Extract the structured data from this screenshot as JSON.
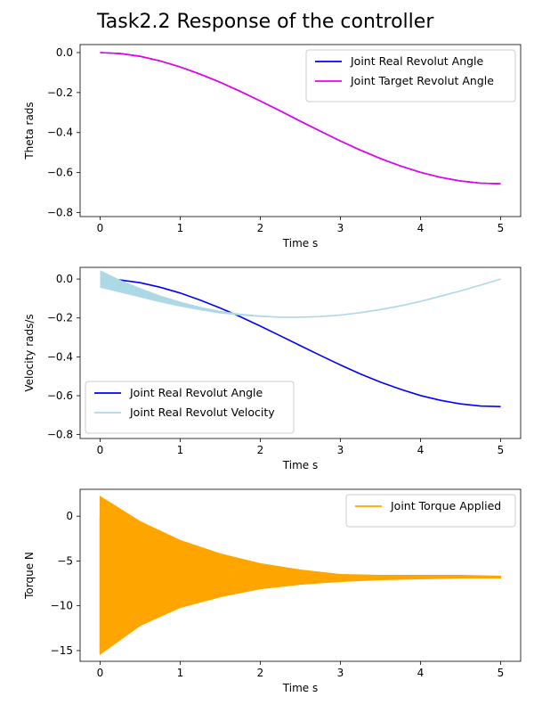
{
  "title": "Task2.2 Response of the controller",
  "chart_data": [
    {
      "type": "line",
      "xlabel": "Time s",
      "ylabel": "Theta rads",
      "xlim": [
        -0.25,
        5.25
      ],
      "ylim": [
        -0.82,
        0.04
      ],
      "xticks": [
        0,
        1,
        2,
        3,
        4,
        5
      ],
      "yticks": [
        0.0,
        -0.2,
        -0.4,
        -0.6,
        -0.8
      ],
      "legend_position": "upper right",
      "series": [
        {
          "name": "Joint Real Revolut Angle",
          "color": "#0000ff",
          "x": [
            0,
            0.25,
            0.5,
            0.75,
            1,
            1.25,
            1.5,
            1.75,
            2,
            2.25,
            2.5,
            2.75,
            3,
            3.25,
            3.5,
            3.75,
            4,
            4.25,
            4.5,
            4.75,
            5
          ],
          "values": [
            0,
            -0.005,
            -0.019,
            -0.042,
            -0.072,
            -0.108,
            -0.149,
            -0.194,
            -0.242,
            -0.292,
            -0.343,
            -0.393,
            -0.442,
            -0.488,
            -0.53,
            -0.567,
            -0.599,
            -0.624,
            -0.642,
            -0.653,
            -0.656
          ]
        },
        {
          "name": "Joint Target Revolut Angle",
          "color": "#ee00ee",
          "x": [
            0,
            0.25,
            0.5,
            0.75,
            1,
            1.25,
            1.5,
            1.75,
            2,
            2.25,
            2.5,
            2.75,
            3,
            3.25,
            3.5,
            3.75,
            4,
            4.25,
            4.5,
            4.75,
            5
          ],
          "values": [
            0,
            -0.005,
            -0.019,
            -0.042,
            -0.072,
            -0.108,
            -0.149,
            -0.194,
            -0.242,
            -0.292,
            -0.343,
            -0.393,
            -0.442,
            -0.488,
            -0.53,
            -0.567,
            -0.599,
            -0.624,
            -0.642,
            -0.653,
            -0.656
          ]
        }
      ]
    },
    {
      "type": "line",
      "xlabel": "Time s",
      "ylabel": "Velocity rads/s",
      "xlim": [
        -0.25,
        5.25
      ],
      "ylim": [
        -0.82,
        0.06
      ],
      "xticks": [
        0,
        1,
        2,
        3,
        4,
        5
      ],
      "yticks": [
        0.0,
        -0.2,
        -0.4,
        -0.6,
        -0.8
      ],
      "legend_position": "lower left",
      "series": [
        {
          "name": "Joint Real Revolut Angle",
          "color": "#0000ff",
          "x": [
            0,
            0.25,
            0.5,
            0.75,
            1,
            1.25,
            1.5,
            1.75,
            2,
            2.25,
            2.5,
            2.75,
            3,
            3.25,
            3.5,
            3.75,
            4,
            4.25,
            4.5,
            4.75,
            5
          ],
          "values": [
            0,
            -0.005,
            -0.019,
            -0.042,
            -0.072,
            -0.108,
            -0.149,
            -0.194,
            -0.242,
            -0.292,
            -0.343,
            -0.393,
            -0.442,
            -0.488,
            -0.53,
            -0.567,
            -0.599,
            -0.624,
            -0.642,
            -0.653,
            -0.656
          ]
        },
        {
          "name": "Joint Real Revolut Velocity",
          "color": "#add8e6",
          "x": [
            0,
            0.25,
            0.5,
            0.75,
            1,
            1.25,
            1.5,
            1.75,
            2,
            2.25,
            2.5,
            2.75,
            3,
            3.25,
            3.5,
            3.75,
            4,
            4.25,
            4.5,
            4.75,
            5
          ],
          "values": [
            0,
            -0.037,
            -0.071,
            -0.102,
            -0.129,
            -0.152,
            -0.17,
            -0.183,
            -0.191,
            -0.196,
            -0.196,
            -0.193,
            -0.185,
            -0.173,
            -0.157,
            -0.138,
            -0.115,
            -0.088,
            -0.061,
            -0.031,
            0
          ],
          "oscillation_envelope_at_start": 0.045
        }
      ]
    },
    {
      "type": "line",
      "xlabel": "Time s",
      "ylabel": "Torque N",
      "xlim": [
        -0.25,
        5.25
      ],
      "ylim": [
        -16.2,
        3.0
      ],
      "xticks": [
        0,
        1,
        2,
        3,
        4,
        5
      ],
      "yticks": [
        0,
        -5,
        -10,
        -15
      ],
      "legend_position": "upper right",
      "series": [
        {
          "name": "Joint Torque Applied",
          "color": "#ffa500",
          "x": [
            0,
            0.5,
            1,
            1.5,
            2,
            2.5,
            3,
            3.5,
            4,
            4.5,
            5
          ],
          "upper": [
            2.2,
            -0.6,
            -2.7,
            -4.2,
            -5.3,
            -6.0,
            -6.5,
            -6.6,
            -6.6,
            -6.6,
            -6.7
          ],
          "lower": [
            -15.4,
            -12.2,
            -10.2,
            -9.0,
            -8.1,
            -7.6,
            -7.3,
            -7.1,
            -7.0,
            -6.9,
            -6.9
          ]
        }
      ]
    }
  ]
}
